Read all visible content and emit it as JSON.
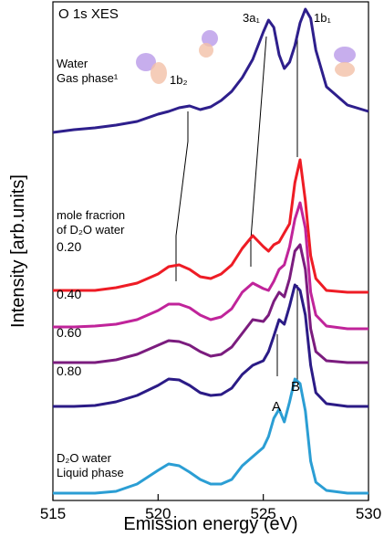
{
  "chart_data": {
    "type": "line",
    "x_label": "Emission energy (eV)",
    "y_label": "Intensity [arb.units]",
    "annotations": [
      "O 1s XES",
      "1b₂",
      "3a₁",
      "1b₁",
      "mole fracrion\nof D₂O water",
      "A",
      "B"
    ],
    "x": [
      515,
      516,
      517,
      518,
      519,
      520,
      520.5,
      521,
      521.5,
      522,
      522.5,
      523,
      523.5,
      524,
      524.5,
      525,
      525.25,
      525.5,
      525.75,
      526,
      526.25,
      526.5,
      526.75,
      527,
      527.25,
      527.5,
      528,
      529,
      530
    ],
    "xlim": [
      515,
      530
    ],
    "xticks": [
      515,
      520,
      525,
      530
    ],
    "ylim": [
      0,
      546
    ],
    "series": [
      {
        "name": "Water\nGas phase¹",
        "color": "#2e1f8c",
        "values": [
          403,
          406,
          408,
          411,
          415,
          423,
          426,
          430,
          432,
          428,
          431,
          438,
          448,
          463,
          483,
          513,
          526,
          518,
          488,
          473,
          480,
          498,
          523,
          538,
          528,
          493,
          453,
          433,
          426
        ]
      },
      {
        "name": "0.20",
        "color": "#ee1c25",
        "values": [
          230,
          230,
          230,
          233,
          238,
          248,
          256,
          258,
          253,
          245,
          243,
          248,
          258,
          276,
          290,
          278,
          273,
          280,
          283,
          293,
          303,
          348,
          373,
          328,
          268,
          243,
          230,
          228,
          228
        ]
      },
      {
        "name": "0.40",
        "color": "#c0249a",
        "values": [
          190,
          190,
          191,
          193,
          198,
          208,
          215,
          215,
          211,
          203,
          198,
          201,
          210,
          228,
          238,
          232,
          230,
          240,
          253,
          258,
          278,
          308,
          326,
          298,
          228,
          203,
          191,
          188,
          188
        ]
      },
      {
        "name": "0.60",
        "color": "#7b1c7e",
        "values": [
          151,
          151,
          151,
          154,
          160,
          170,
          175,
          174,
          170,
          163,
          158,
          160,
          168,
          183,
          198,
          196,
          203,
          218,
          228,
          223,
          243,
          273,
          280,
          253,
          188,
          163,
          153,
          151,
          151
        ]
      },
      {
        "name": "0.80",
        "color": "#2b1b86",
        "values": [
          103,
          103,
          104,
          108,
          115,
          126,
          133,
          132,
          126,
          118,
          115,
          116,
          123,
          138,
          148,
          153,
          163,
          180,
          198,
          193,
          213,
          236,
          230,
          203,
          148,
          118,
          106,
          103,
          103
        ]
      },
      {
        "name": "D₂O water\nLiquid phase",
        "color": "#2b9ed4",
        "values": [
          8,
          8,
          8,
          10,
          18,
          33,
          40,
          38,
          31,
          23,
          18,
          18,
          23,
          38,
          48,
          58,
          70,
          90,
          100,
          86,
          108,
          133,
          128,
          98,
          43,
          20,
          11,
          8,
          8
        ]
      }
    ]
  }
}
